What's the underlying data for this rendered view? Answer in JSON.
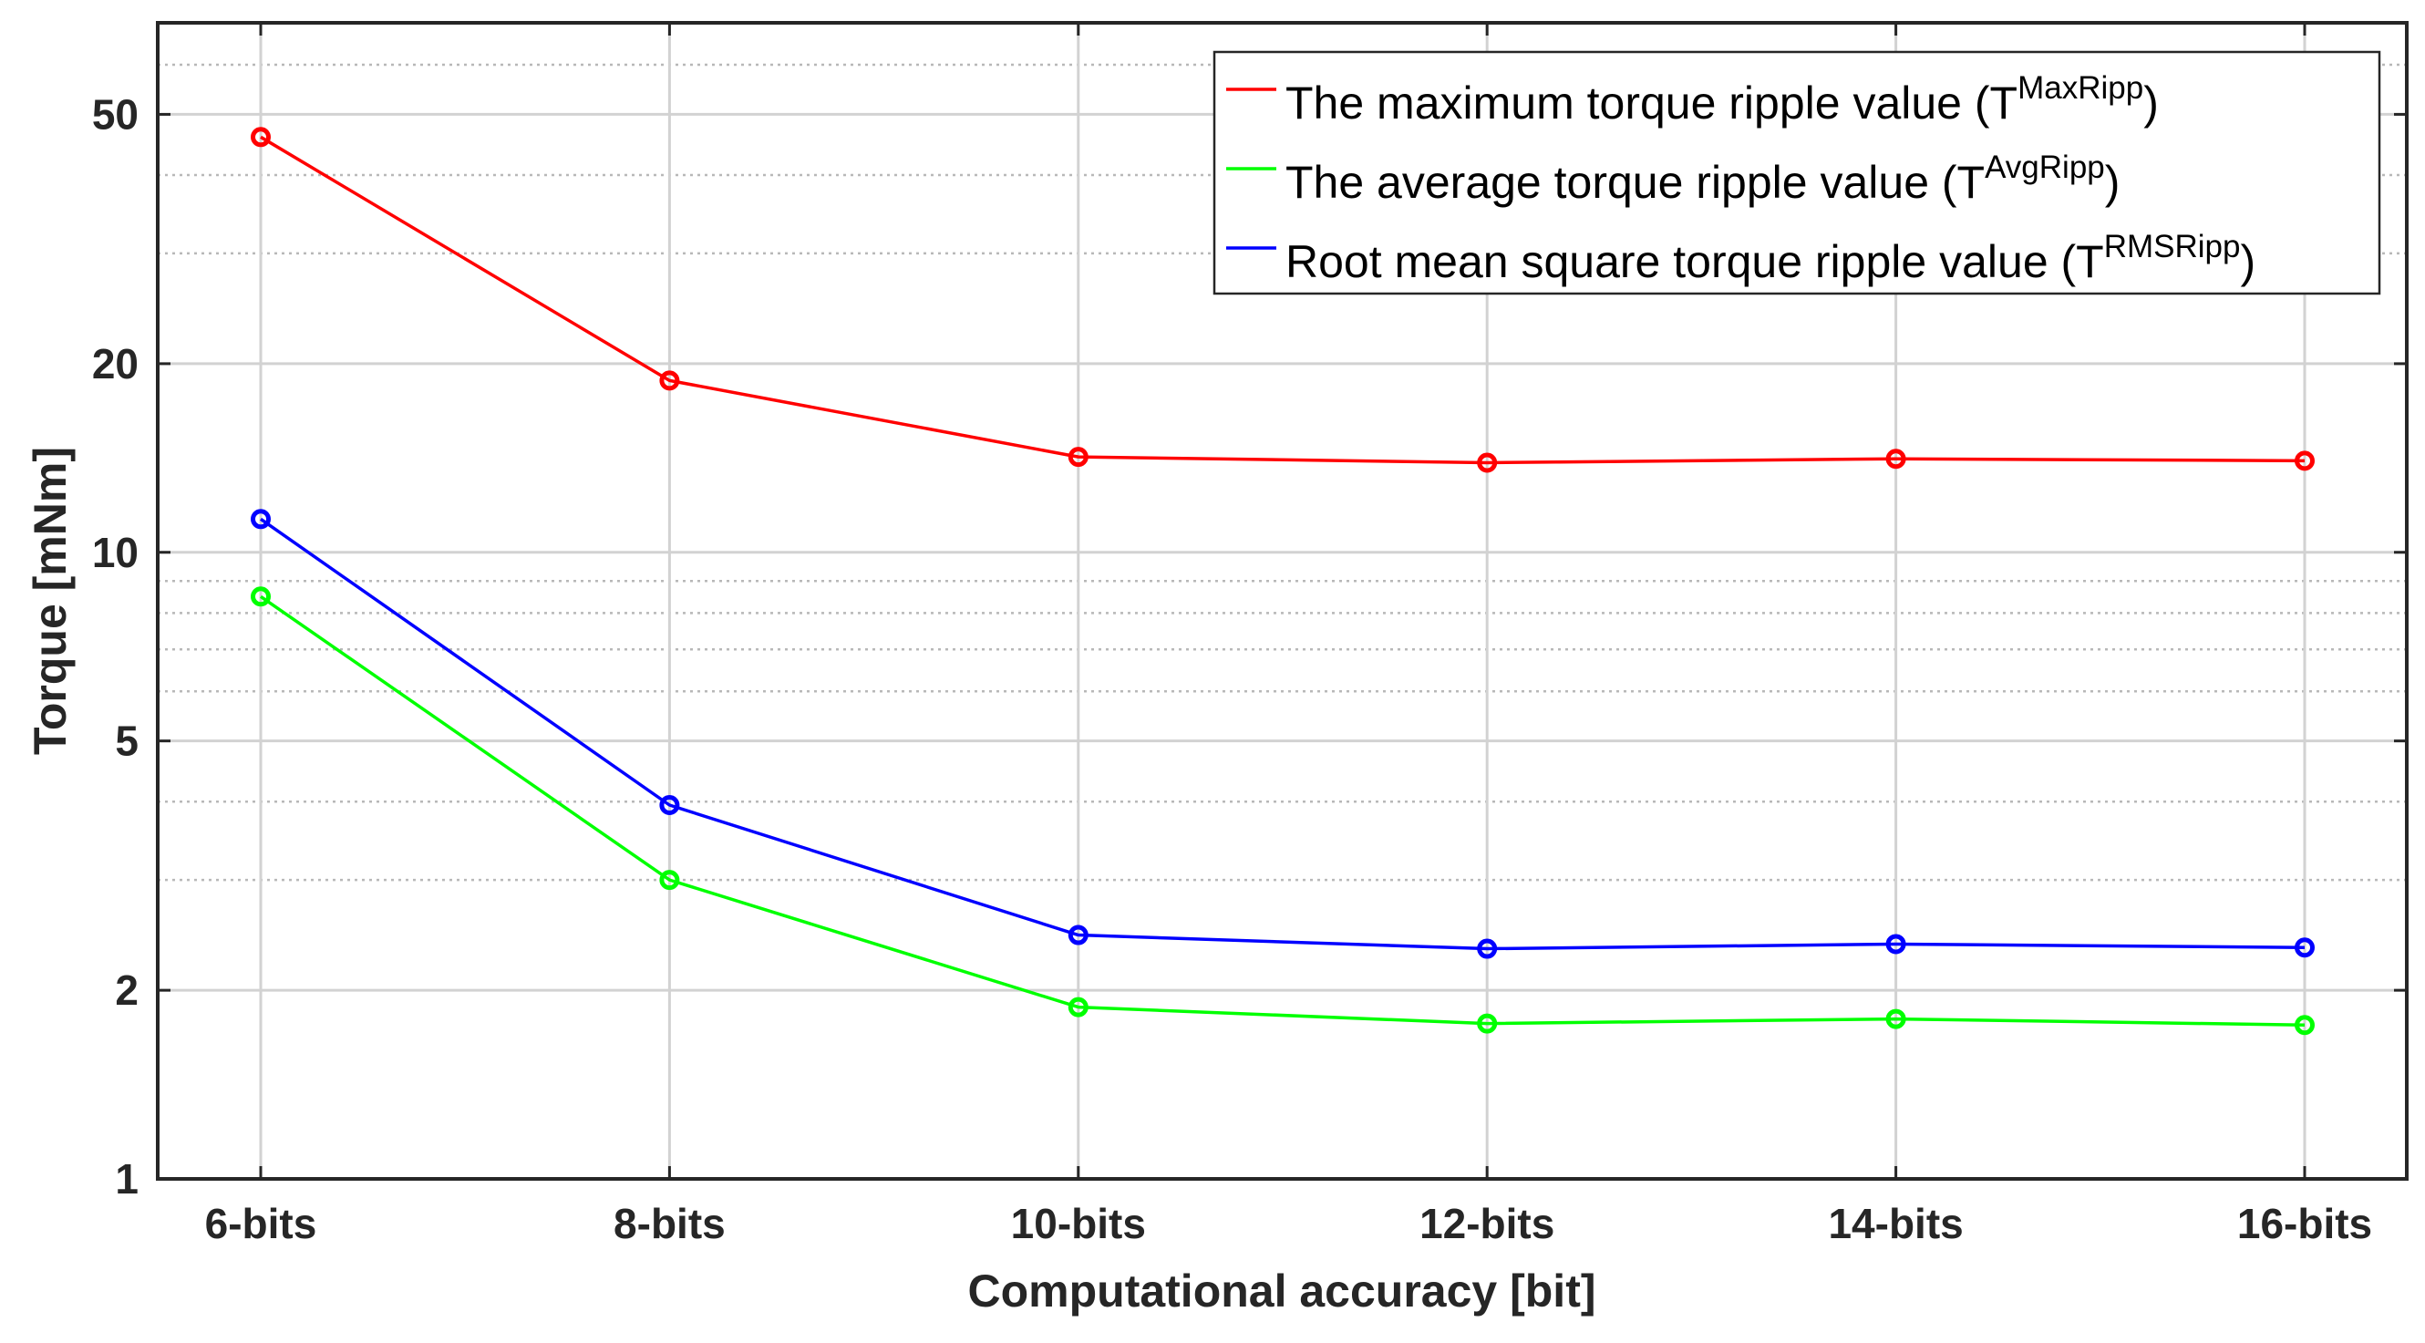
{
  "chart_data": {
    "type": "line",
    "title": "",
    "xlabel": "Computational accuracy [bit]",
    "ylabel": "Torque [mNm]",
    "yscale": "log",
    "ylim": [
      1,
      70
    ],
    "grid": true,
    "legend_position": "top-right",
    "categories": [
      "6-bits",
      "8-bits",
      "10-bits",
      "12-bits",
      "14-bits",
      "16-bits"
    ],
    "yticks": [
      1,
      2,
      5,
      10,
      20,
      50
    ],
    "ytick_labels": [
      "1",
      "2",
      "5",
      "10",
      "20",
      "50"
    ],
    "series": [
      {
        "name": "The maximum torque ripple value (T^MaxRipp)",
        "legend_prefix": "The maximum torque ripple value (T",
        "legend_sup": "MaxRipp",
        "legend_suffix": ")",
        "color": "#ff0000",
        "values": [
          46,
          18.8,
          14.2,
          13.9,
          14.1,
          14.0
        ]
      },
      {
        "name": "The average torque ripple value (T^AvgRipp)",
        "legend_prefix": "The average torque ripple value (T",
        "legend_sup": "AvgRipp",
        "legend_suffix": ")",
        "color": "#00ff00",
        "values": [
          8.5,
          3.0,
          1.88,
          1.77,
          1.8,
          1.76
        ]
      },
      {
        "name": "Root mean square torque ripple value (T^RMSRipp)",
        "legend_prefix": "Root mean square torque ripple value (T",
        "legend_sup": "RMSRipp",
        "legend_suffix": ")",
        "color": "#0000ff",
        "values": [
          11.3,
          3.95,
          2.45,
          2.33,
          2.37,
          2.34
        ]
      }
    ]
  }
}
